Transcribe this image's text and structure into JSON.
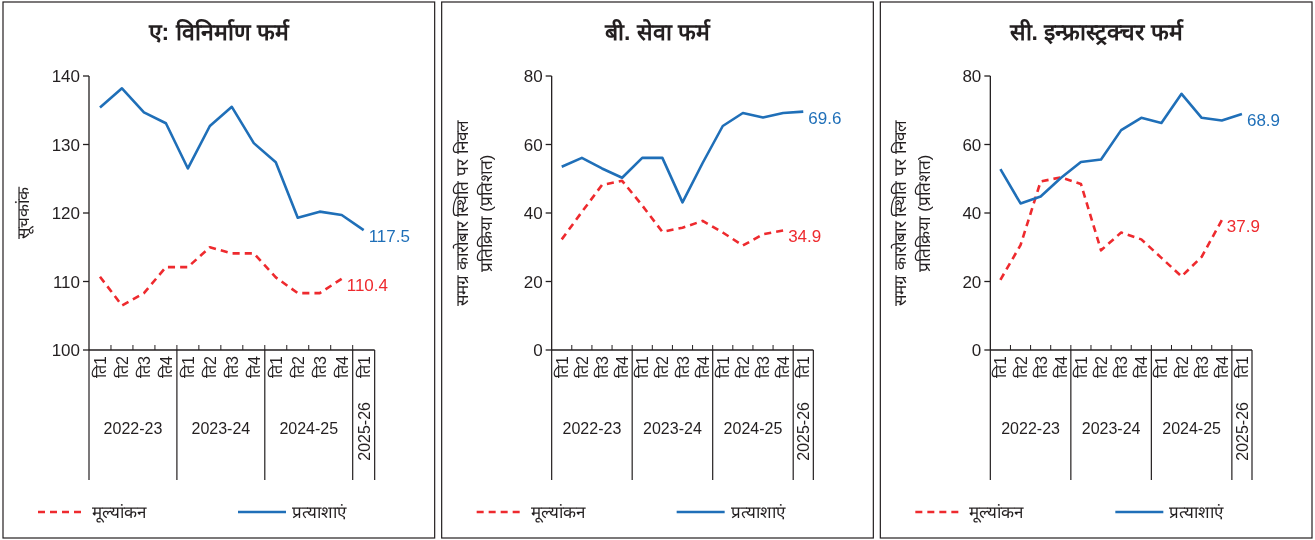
{
  "chart_data": [
    {
      "type": "line",
      "title": "ए: विनिर्माण फर्म",
      "ylabel": "सूचकांक",
      "categories": [
        "ति1",
        "ति2",
        "ति3",
        "ति4",
        "ति1",
        "ति2",
        "ति3",
        "ति4",
        "ति1",
        "ति2",
        "ति3",
        "ति4",
        "ति1"
      ],
      "annotations": [
        "2022-23",
        "2023-24",
        "2024-25",
        "2025-26"
      ],
      "ylim": [
        100,
        140
      ],
      "yticks": [
        100,
        110,
        120,
        130,
        140
      ],
      "legend": "bottom",
      "series": [
        {
          "name": "मूल्यांकन",
          "color": "#ee2a2e",
          "line_style": "dashed",
          "values": [
            110.7,
            106.5,
            108.3,
            112.1,
            112.1,
            115.0,
            114.1,
            114.1,
            110.6,
            108.3,
            108.3,
            110.4,
            null
          ],
          "value_labels": [
            null,
            null,
            null,
            null,
            null,
            null,
            null,
            null,
            null,
            null,
            null,
            "110.4",
            null
          ]
        },
        {
          "name": "प्रत्याशाएं",
          "color": "#1f6fb8",
          "line_style": "solid",
          "values": [
            135.4,
            138.2,
            134.7,
            133.1,
            126.5,
            132.7,
            135.5,
            130.2,
            127.4,
            119.3,
            120.2,
            119.7,
            117.5
          ],
          "value_labels": [
            null,
            null,
            null,
            null,
            null,
            null,
            null,
            null,
            null,
            null,
            null,
            null,
            "117.5"
          ]
        }
      ]
    },
    {
      "type": "line",
      "title": "बी. सेवा फर्म",
      "ylabel": "समग्र कारोबार स्थिति पर निवल प्रतिक्रिया (प्रतिशत)",
      "categories": [
        "ति1",
        "ति2",
        "ति3",
        "ति4",
        "ति1",
        "ति2",
        "ति3",
        "ति4",
        "ति1",
        "ति2",
        "ति3",
        "ति4",
        "ति1"
      ],
      "annotations": [
        "2022-23",
        "2023-24",
        "2024-25",
        "2025-26"
      ],
      "ylim": [
        0,
        80
      ],
      "yticks": [
        0,
        20,
        40,
        60,
        80
      ],
      "legend": "bottom",
      "series": [
        {
          "name": "मूल्यांकन",
          "color": "#ee2a2e",
          "line_style": "dashed",
          "values": [
            32.3,
            40.3,
            48.2,
            49.4,
            42.2,
            34.5,
            35.7,
            37.7,
            34.3,
            30.5,
            33.8,
            34.9,
            null
          ],
          "value_labels": [
            null,
            null,
            null,
            null,
            null,
            null,
            null,
            null,
            null,
            null,
            null,
            "34.9",
            null
          ]
        },
        {
          "name": "प्रत्याशाएं",
          "color": "#1f6fb8",
          "line_style": "solid",
          "values": [
            53.5,
            56.1,
            53.0,
            50.3,
            56.1,
            56.1,
            43.1,
            54.6,
            65.4,
            69.2,
            67.9,
            69.2,
            69.6
          ],
          "value_labels": [
            null,
            null,
            null,
            null,
            null,
            null,
            null,
            null,
            null,
            null,
            null,
            null,
            "69.6"
          ]
        }
      ]
    },
    {
      "type": "line",
      "title": "सी. इन्फ्रास्ट्रक्चर फर्म",
      "ylabel": "समग्र कारोबार स्थिति पर निवल प्रतिक्रिया (प्रतिशत)",
      "categories": [
        "ति1",
        "ति2",
        "ति3",
        "ति4",
        "ति1",
        "ति2",
        "ति3",
        "ति4",
        "ति1",
        "ति2",
        "ति3",
        "ति4",
        "ति1"
      ],
      "annotations": [
        "2022-23",
        "2023-24",
        "2024-25",
        "2025-26"
      ],
      "ylim": [
        0,
        80
      ],
      "yticks": [
        0,
        20,
        40,
        60,
        80
      ],
      "legend": "bottom",
      "series": [
        {
          "name": "मूल्यांकन",
          "color": "#ee2a2e",
          "line_style": "dashed",
          "values": [
            20.5,
            30.6,
            49.2,
            50.4,
            48.5,
            29.1,
            34.3,
            32.3,
            26.9,
            21.5,
            27.2,
            37.9,
            null
          ],
          "value_labels": [
            null,
            null,
            null,
            null,
            null,
            null,
            null,
            null,
            null,
            null,
            null,
            "37.9",
            null
          ]
        },
        {
          "name": "प्रत्याशाएं",
          "color": "#1f6fb8",
          "line_style": "solid",
          "values": [
            52.8,
            42.8,
            44.8,
            50.2,
            54.9,
            55.6,
            64.2,
            67.8,
            66.3,
            74.8,
            67.8,
            67.0,
            68.9
          ],
          "value_labels": [
            null,
            null,
            null,
            null,
            null,
            null,
            null,
            null,
            null,
            null,
            null,
            null,
            "68.9"
          ]
        }
      ]
    }
  ]
}
